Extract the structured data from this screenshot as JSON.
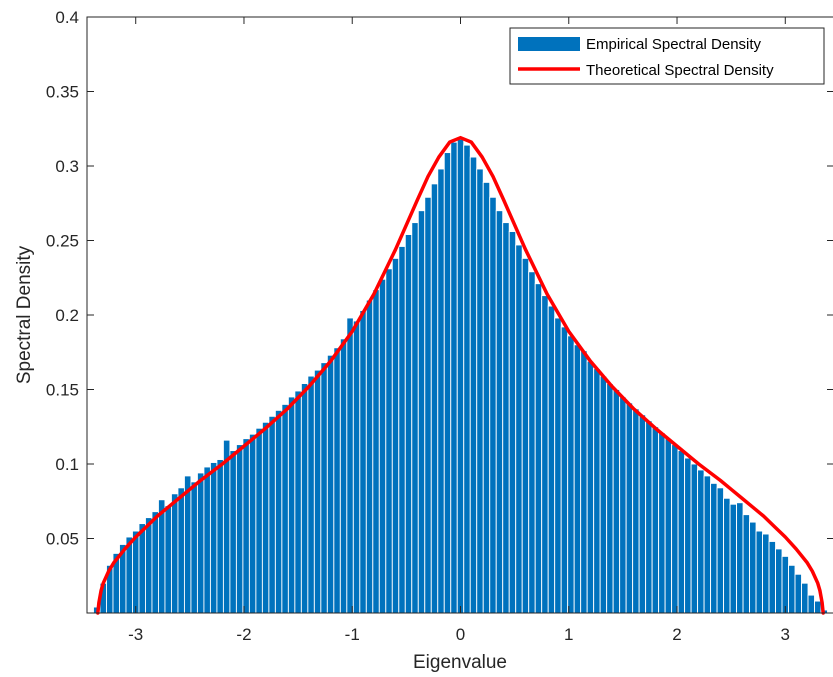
{
  "chart_data": {
    "type": "bar",
    "title": "",
    "xlabel": "Eigenvalue",
    "ylabel": "Spectral Density",
    "xlim": [
      -3.45,
      3.45
    ],
    "ylim": [
      0,
      0.4
    ],
    "grid": false,
    "legend_position": "top-right",
    "xticks": [
      -3,
      -2,
      -1,
      0,
      1,
      2,
      3
    ],
    "xtick_labels": [
      "-3",
      "-2",
      "-1",
      "0",
      "1",
      "2",
      "3"
    ],
    "yticks": [
      0.05,
      0.1,
      0.15,
      0.2,
      0.25,
      0.3,
      0.35,
      0.4
    ],
    "ytick_labels": [
      "0.05",
      "0.1",
      "0.15",
      "0.2",
      "0.25",
      "0.3",
      "0.35",
      "0.4"
    ],
    "series": [
      {
        "name": "Empirical Spectral Density",
        "kind": "histogram",
        "color": "#0072BD",
        "edge_color": "#ffffff",
        "bin_centers": [
          -3.36,
          -3.3,
          -3.24,
          -3.18,
          -3.12,
          -3.06,
          -3.0,
          -2.94,
          -2.88,
          -2.82,
          -2.76,
          -2.7,
          -2.64,
          -2.58,
          -2.52,
          -2.46,
          -2.4,
          -2.34,
          -2.28,
          -2.22,
          -2.16,
          -2.1,
          -2.04,
          -1.98,
          -1.92,
          -1.86,
          -1.8,
          -1.74,
          -1.68,
          -1.62,
          -1.56,
          -1.5,
          -1.44,
          -1.38,
          -1.32,
          -1.26,
          -1.2,
          -1.14,
          -1.08,
          -1.02,
          -0.96,
          -0.9,
          -0.84,
          -0.78,
          -0.72,
          -0.66,
          -0.6,
          -0.54,
          -0.48,
          -0.42,
          -0.36,
          -0.3,
          -0.24,
          -0.18,
          -0.12,
          -0.06,
          0.0,
          0.06,
          0.12,
          0.18,
          0.24,
          0.3,
          0.36,
          0.42,
          0.48,
          0.54,
          0.6,
          0.66,
          0.72,
          0.78,
          0.84,
          0.9,
          0.96,
          1.02,
          1.08,
          1.14,
          1.2,
          1.26,
          1.32,
          1.38,
          1.44,
          1.5,
          1.56,
          1.62,
          1.68,
          1.74,
          1.8,
          1.86,
          1.92,
          1.98,
          2.04,
          2.1,
          2.16,
          2.22,
          2.28,
          2.34,
          2.4,
          2.46,
          2.52,
          2.58,
          2.64,
          2.7,
          2.76,
          2.82,
          2.88,
          2.94,
          3.0,
          3.06,
          3.12,
          3.18,
          3.24,
          3.3,
          3.36
        ],
        "values": [
          0.004,
          0.02,
          0.032,
          0.04,
          0.046,
          0.051,
          0.055,
          0.06,
          0.064,
          0.068,
          0.076,
          0.072,
          0.08,
          0.084,
          0.092,
          0.088,
          0.094,
          0.098,
          0.101,
          0.103,
          0.116,
          0.109,
          0.113,
          0.117,
          0.12,
          0.124,
          0.128,
          0.132,
          0.136,
          0.14,
          0.145,
          0.149,
          0.154,
          0.159,
          0.163,
          0.168,
          0.173,
          0.178,
          0.184,
          0.198,
          0.196,
          0.203,
          0.21,
          0.217,
          0.224,
          0.231,
          0.238,
          0.246,
          0.254,
          0.262,
          0.27,
          0.279,
          0.288,
          0.298,
          0.309,
          0.316,
          0.318,
          0.314,
          0.306,
          0.298,
          0.289,
          0.279,
          0.27,
          0.262,
          0.256,
          0.247,
          0.238,
          0.229,
          0.221,
          0.213,
          0.206,
          0.198,
          0.192,
          0.186,
          0.18,
          0.176,
          0.169,
          0.164,
          0.159,
          0.154,
          0.15,
          0.145,
          0.141,
          0.137,
          0.133,
          0.129,
          0.125,
          0.121,
          0.117,
          0.113,
          0.109,
          0.104,
          0.1,
          0.096,
          0.092,
          0.087,
          0.084,
          0.077,
          0.073,
          0.074,
          0.066,
          0.061,
          0.055,
          0.053,
          0.048,
          0.043,
          0.038,
          0.032,
          0.026,
          0.02,
          0.012,
          0.008,
          0.002
        ]
      },
      {
        "name": "Theoretical Spectral Density",
        "kind": "line",
        "color": "#FF0000",
        "x": [
          -3.35,
          -3.34,
          -3.32,
          -3.3,
          -3.25,
          -3.2,
          -3.1,
          -3.0,
          -2.9,
          -2.8,
          -2.7,
          -2.6,
          -2.5,
          -2.4,
          -2.2,
          -2.0,
          -1.8,
          -1.6,
          -1.4,
          -1.2,
          -1.0,
          -0.8,
          -0.6,
          -0.4,
          -0.3,
          -0.2,
          -0.1,
          0.0,
          0.1,
          0.2,
          0.3,
          0.4,
          0.6,
          0.8,
          1.0,
          1.2,
          1.4,
          1.6,
          1.8,
          2.0,
          2.2,
          2.4,
          2.5,
          2.6,
          2.7,
          2.8,
          2.9,
          3.0,
          3.1,
          3.2,
          3.25,
          3.3,
          3.32,
          3.34,
          3.35
        ],
        "y": [
          0.0,
          0.007,
          0.015,
          0.02,
          0.028,
          0.034,
          0.043,
          0.051,
          0.058,
          0.065,
          0.071,
          0.077,
          0.083,
          0.089,
          0.1,
          0.112,
          0.124,
          0.137,
          0.152,
          0.169,
          0.189,
          0.214,
          0.244,
          0.277,
          0.293,
          0.306,
          0.316,
          0.319,
          0.316,
          0.306,
          0.293,
          0.277,
          0.244,
          0.214,
          0.189,
          0.169,
          0.152,
          0.137,
          0.124,
          0.112,
          0.1,
          0.089,
          0.083,
          0.077,
          0.071,
          0.065,
          0.058,
          0.051,
          0.043,
          0.034,
          0.028,
          0.02,
          0.015,
          0.007,
          0.0
        ]
      }
    ]
  }
}
